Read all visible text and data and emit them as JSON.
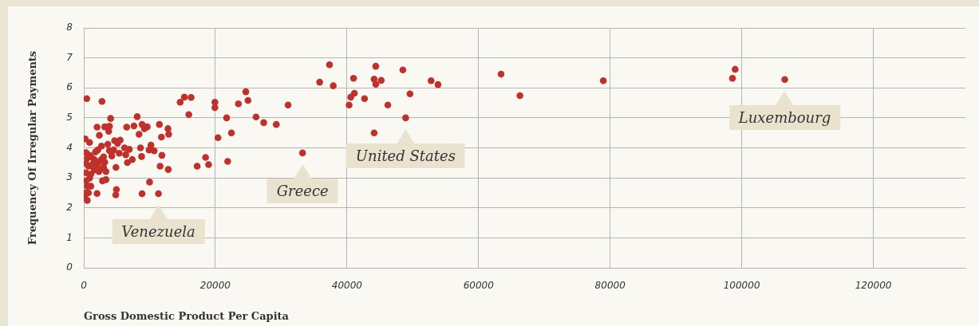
{
  "chart_data": {
    "type": "scatter",
    "xlabel": "Gross Domestic Product Per Capita",
    "ylabel": "Frequency Of Irregular Payments",
    "color": "#c0312b",
    "marker": "circle",
    "grid": true,
    "xlim": [
      0,
      134000
    ],
    "xticks": [
      0,
      20000,
      40000,
      60000,
      80000,
      100000,
      120000
    ],
    "ylim": [
      0,
      8
    ],
    "yticks": [
      0,
      1,
      2,
      3,
      4,
      5,
      6,
      7,
      8
    ],
    "x": [
      460,
      2770,
      4080,
      8120,
      2020,
      3190,
      3900,
      3790,
      2370,
      6520,
      7620,
      8860,
      9220,
      9640,
      8400,
      11490,
      12800,
      12900,
      11800,
      210,
      880,
      2690,
      3650,
      4680,
      5530,
      5140,
      4540,
      4260,
      3900,
      5390,
      6200,
      6910,
      6380,
      8620,
      9930,
      10210,
      10700,
      8790,
      11880,
      7370,
      6630,
      11600,
      12840,
      4890,
      17230,
      18510,
      18970,
      10000,
      4960,
      4860,
      8860,
      11350,
      2020,
      355,
      887,
      532,
      1064,
      1600,
      1420,
      2300,
      2660,
      3010,
      3190,
      355,
      710,
      1240,
      1770,
      2480,
      3010,
      3370,
      355,
      1064,
      1600,
      2300,
      2840,
      3370,
      355,
      887,
      532,
      1064,
      177,
      710,
      177,
      532,
      2130,
      1770,
      14650,
      15290,
      16310,
      15960,
      19930,
      19930,
      24630,
      24960,
      23500,
      21710,
      26180,
      27350,
      29260,
      31050,
      22440,
      20400,
      21870,
      33250,
      35850,
      37350,
      37920,
      44380,
      48500,
      41000,
      44130,
      45210,
      44380,
      52790,
      53840,
      41130,
      40580,
      40330,
      42670,
      49580,
      46210,
      48920,
      44130,
      63420,
      66290,
      78960,
      99000,
      98590,
      106540
    ],
    "values": [
      5.64,
      5.55,
      4.98,
      5.04,
      4.69,
      4.7,
      4.72,
      4.55,
      4.42,
      4.69,
      4.73,
      4.78,
      4.64,
      4.7,
      4.45,
      4.78,
      4.64,
      4.45,
      4.36,
      4.3,
      4.18,
      4.06,
      4.12,
      4.24,
      4.26,
      4.15,
      3.93,
      3.73,
      3.91,
      3.82,
      4.0,
      3.95,
      3.77,
      4.0,
      3.93,
      4.09,
      3.9,
      3.71,
      3.75,
      3.61,
      3.51,
      3.39,
      3.28,
      3.35,
      3.39,
      3.68,
      3.44,
      2.86,
      2.61,
      2.43,
      2.47,
      2.47,
      2.48,
      3.84,
      3.75,
      3.66,
      3.7,
      3.61,
      3.48,
      3.52,
      3.61,
      3.7,
      3.52,
      3.48,
      3.39,
      3.39,
      3.44,
      3.3,
      3.35,
      3.21,
      3.17,
      3.12,
      3.26,
      3.21,
      2.9,
      2.94,
      2.9,
      2.99,
      2.72,
      2.72,
      2.5,
      2.5,
      2.32,
      2.25,
      3.93,
      3.86,
      5.52,
      5.69,
      5.68,
      5.11,
      5.52,
      5.34,
      5.87,
      5.58,
      5.47,
      5.0,
      5.03,
      4.84,
      4.78,
      5.43,
      4.5,
      4.34,
      3.55,
      3.83,
      6.19,
      6.77,
      6.07,
      6.72,
      6.6,
      6.32,
      6.29,
      6.25,
      6.12,
      6.24,
      6.11,
      5.82,
      5.69,
      5.43,
      5.64,
      5.8,
      5.43,
      5.0,
      4.5,
      6.46,
      5.74,
      6.24,
      6.62,
      6.32,
      6.28
    ],
    "annotations": [
      {
        "text": "Venezuela",
        "x": 11350,
        "y": 2.47
      },
      {
        "text": "Greece",
        "x": 33250,
        "y": 3.83
      },
      {
        "text": "United States",
        "x": 48920,
        "y": 5.0
      },
      {
        "text": "Luxembourg",
        "x": 106540,
        "y": 6.28
      }
    ]
  }
}
